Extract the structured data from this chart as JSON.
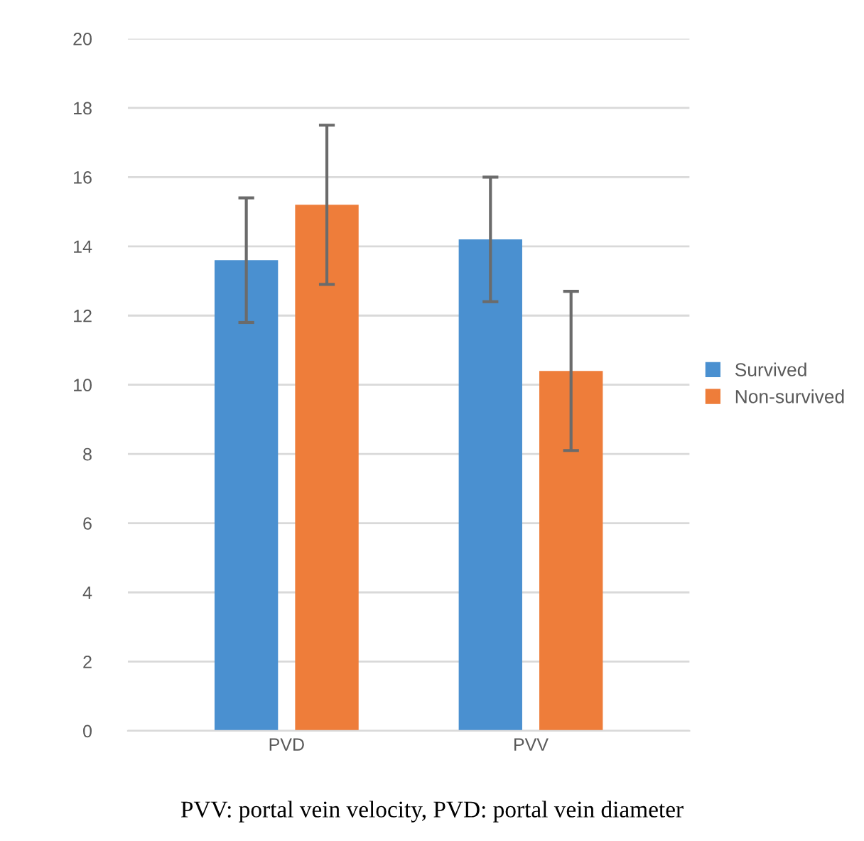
{
  "chart_data": {
    "type": "bar",
    "categories": [
      "PVD",
      "PVV"
    ],
    "series": [
      {
        "name": "Survived",
        "color": "#4a90d0",
        "values": [
          13.6,
          14.2
        ],
        "errors": [
          1.8,
          1.8
        ]
      },
      {
        "name": "Non-survived",
        "color": "#ee7d3a",
        "values": [
          15.2,
          10.4
        ],
        "errors": [
          2.3,
          2.3
        ]
      }
    ],
    "ylim": [
      0,
      20
    ],
    "yticks": [
      0,
      2,
      4,
      6,
      8,
      10,
      12,
      14,
      16,
      18,
      20
    ],
    "grid": "y",
    "legend": "right",
    "annotations": [
      "PVV: portal vein velocity, PVD: portal vein diameter"
    ]
  }
}
